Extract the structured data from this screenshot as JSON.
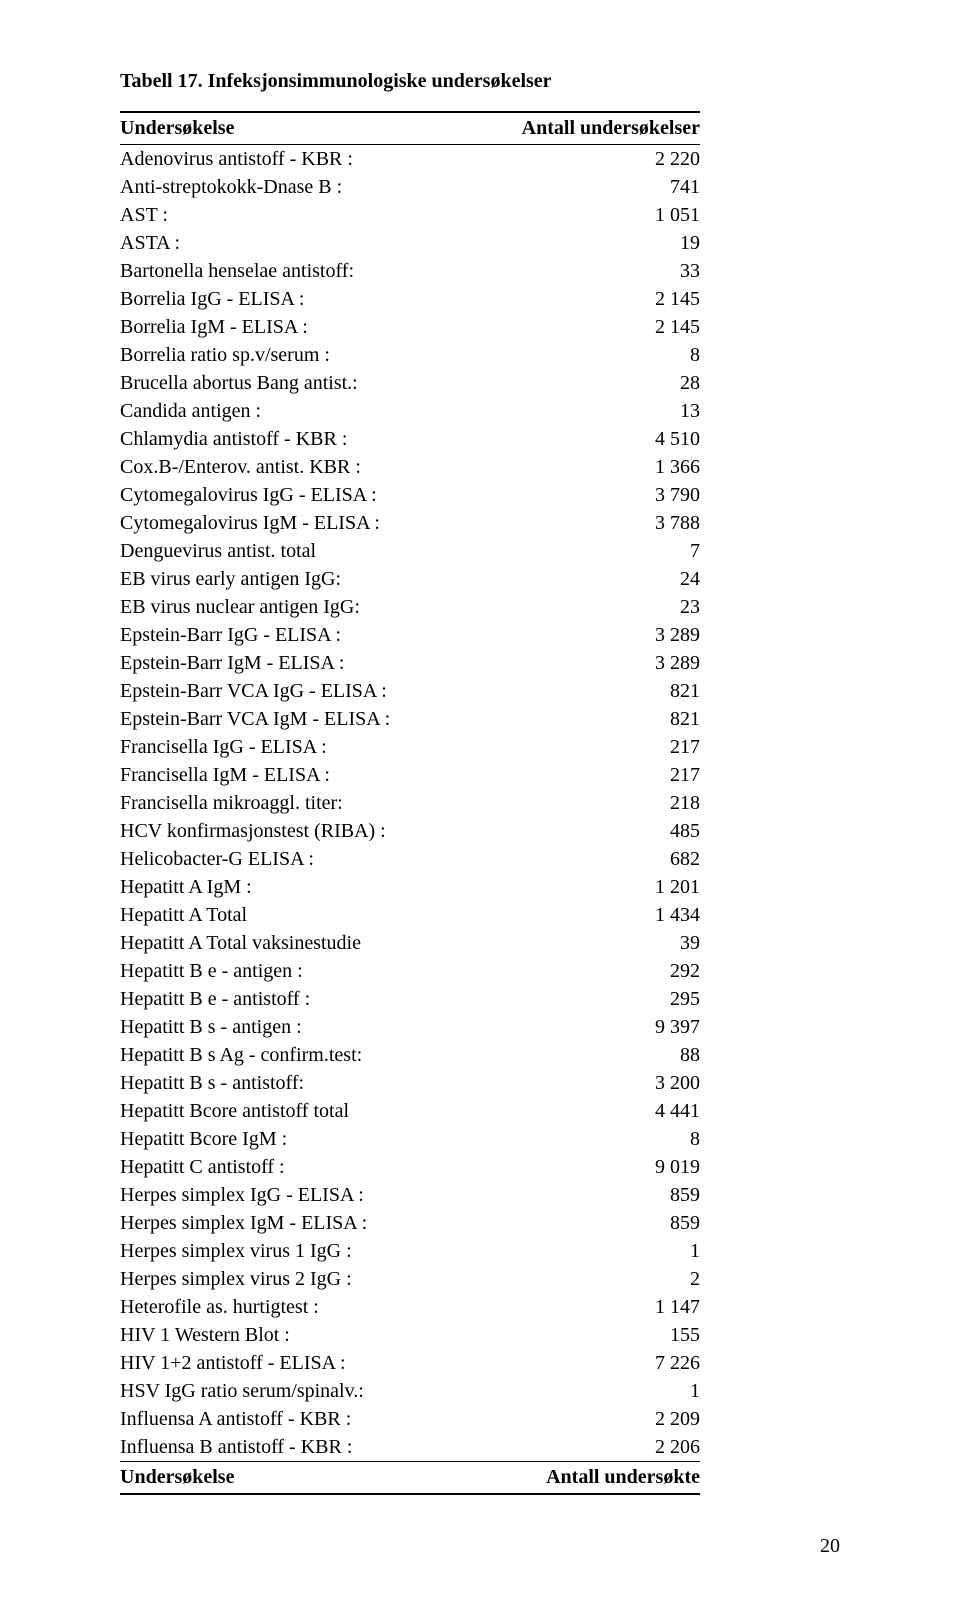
{
  "title": "Tabell 17. Infeksjonsimmunologiske undersøkelser",
  "header": {
    "c1": "Undersøkelse",
    "c2": "Antall undersøkelser"
  },
  "footer": {
    "c1": "Undersøkelse",
    "c2": "Antall undersøkte"
  },
  "page_number": "20",
  "rows": [
    {
      "label": "Adenovirus antistoff - KBR :",
      "value": "2 220"
    },
    {
      "label": "Anti-streptokokk-Dnase B :",
      "value": "741"
    },
    {
      "label": "AST :",
      "value": "1 051"
    },
    {
      "label": "ASTA :",
      "value": "19"
    },
    {
      "label": "Bartonella henselae antistoff:",
      "value": "33"
    },
    {
      "label": "Borrelia IgG - ELISA :",
      "value": "2 145"
    },
    {
      "label": "Borrelia IgM - ELISA :",
      "value": "2 145"
    },
    {
      "label": "Borrelia ratio sp.v/serum :",
      "value": "8"
    },
    {
      "label": "Brucella abortus Bang antist.:",
      "value": "28"
    },
    {
      "label": "Candida antigen :",
      "value": "13"
    },
    {
      "label": "Chlamydia antistoff - KBR :",
      "value": "4 510"
    },
    {
      "label": "Cox.B-/Enterov. antist. KBR :",
      "value": "1 366"
    },
    {
      "label": "Cytomegalovirus IgG - ELISA :",
      "value": "3 790"
    },
    {
      "label": "Cytomegalovirus IgM - ELISA :",
      "value": "3 788"
    },
    {
      "label": "Denguevirus antist. total",
      "value": "7"
    },
    {
      "label": "EB virus early antigen IgG:",
      "value": "24"
    },
    {
      "label": "EB virus nuclear antigen IgG:",
      "value": "23"
    },
    {
      "label": "Epstein-Barr IgG - ELISA :",
      "value": "3 289"
    },
    {
      "label": "Epstein-Barr IgM - ELISA :",
      "value": "3 289"
    },
    {
      "label": "Epstein-Barr VCA IgG - ELISA :",
      "value": "821"
    },
    {
      "label": "Epstein-Barr VCA IgM - ELISA :",
      "value": "821"
    },
    {
      "label": "Francisella IgG - ELISA :",
      "value": "217"
    },
    {
      "label": "Francisella IgM - ELISA :",
      "value": "217"
    },
    {
      "label": "Francisella mikroaggl. titer:",
      "value": "218"
    },
    {
      "label": "HCV konfirmasjonstest (RIBA) :",
      "value": "485"
    },
    {
      "label": "Helicobacter-G ELISA :",
      "value": "682"
    },
    {
      "label": "Hepatitt A IgM :",
      "value": "1 201"
    },
    {
      "label": "Hepatitt A Total",
      "value": "1 434"
    },
    {
      "label": "Hepatitt A Total vaksinestudie",
      "value": "39"
    },
    {
      "label": "Hepatitt B e - antigen :",
      "value": "292"
    },
    {
      "label": "Hepatitt B e - antistoff :",
      "value": "295"
    },
    {
      "label": "Hepatitt B s - antigen :",
      "value": "9 397"
    },
    {
      "label": "Hepatitt B s Ag - confirm.test:",
      "value": "88"
    },
    {
      "label": "Hepatitt B s - antistoff:",
      "value": "3 200"
    },
    {
      "label": "Hepatitt Bcore antistoff total",
      "value": "4 441"
    },
    {
      "label": "Hepatitt Bcore IgM :",
      "value": "8"
    },
    {
      "label": "Hepatitt C antistoff :",
      "value": "9 019"
    },
    {
      "label": "Herpes simplex IgG - ELISA :",
      "value": "859"
    },
    {
      "label": "Herpes simplex IgM - ELISA :",
      "value": "859"
    },
    {
      "label": "Herpes simplex virus 1 IgG :",
      "value": "1"
    },
    {
      "label": "Herpes simplex virus 2 IgG :",
      "value": "2"
    },
    {
      "label": "Heterofile as. hurtigtest :",
      "value": "1 147"
    },
    {
      "label": "HIV 1 Western Blot :",
      "value": "155"
    },
    {
      "label": "HIV 1+2 antistoff - ELISA :",
      "value": "7 226"
    },
    {
      "label": "HSV IgG ratio serum/spinalv.:",
      "value": "1"
    },
    {
      "label": "Influensa A antistoff - KBR :",
      "value": "2 209"
    },
    {
      "label": "Influensa B antistoff - KBR :",
      "value": "2 206"
    }
  ]
}
